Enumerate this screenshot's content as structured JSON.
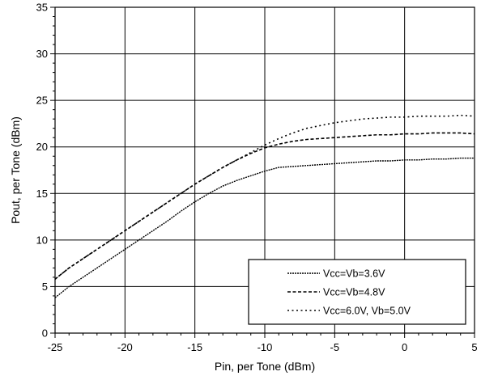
{
  "chart_data": {
    "type": "line",
    "title": "",
    "xlabel": "Pin, per Tone (dBm)",
    "ylabel": "Pout, per Tone (dBm)",
    "xlim": [
      -25,
      5
    ],
    "ylim": [
      0,
      35
    ],
    "xticks": [
      -25,
      -20,
      -15,
      -10,
      -5,
      0,
      5
    ],
    "xtick_labels": [
      "-25",
      "-20",
      "-15",
      "-10",
      "-5",
      "0",
      "5"
    ],
    "yticks": [
      0,
      5,
      10,
      15,
      20,
      25,
      30,
      35
    ],
    "ytick_labels": [
      "0",
      "5",
      "10",
      "15",
      "20",
      "25",
      "30",
      "35"
    ],
    "grid": true,
    "legend_position": "bottom-right",
    "series": [
      {
        "name": "Vcc=Vb=3.6V",
        "style": "solid-dense",
        "x": [
          -25,
          -24,
          -23,
          -22,
          -21,
          -20,
          -19,
          -18,
          -17,
          -16,
          -15,
          -14,
          -13,
          -12,
          -11,
          -10,
          -9,
          -8,
          -7,
          -6,
          -5,
          -4,
          -3,
          -2,
          -1,
          0,
          1,
          2,
          3,
          4,
          5
        ],
        "y": [
          3.8,
          5.0,
          6.0,
          7.0,
          8.0,
          9.0,
          10.0,
          11.0,
          12.0,
          13.1,
          14.1,
          15.0,
          15.8,
          16.4,
          16.9,
          17.4,
          17.8,
          17.9,
          18.0,
          18.1,
          18.2,
          18.3,
          18.4,
          18.5,
          18.5,
          18.6,
          18.6,
          18.7,
          18.7,
          18.8,
          18.8
        ]
      },
      {
        "name": "Vcc=Vb=4.8V",
        "style": "dash",
        "x": [
          -25,
          -24,
          -23,
          -22,
          -21,
          -20,
          -19,
          -18,
          -17,
          -16,
          -15,
          -14,
          -13,
          -12,
          -11,
          -10,
          -9,
          -8,
          -7,
          -6,
          -5,
          -4,
          -3,
          -2,
          -1,
          0,
          1,
          2,
          3,
          4,
          5
        ],
        "y": [
          5.8,
          7.0,
          8.0,
          9.0,
          10.0,
          11.0,
          12.0,
          13.0,
          14.0,
          15.0,
          16.0,
          16.9,
          17.8,
          18.6,
          19.3,
          19.9,
          20.3,
          20.6,
          20.8,
          20.9,
          21.0,
          21.1,
          21.2,
          21.3,
          21.3,
          21.4,
          21.4,
          21.5,
          21.5,
          21.5,
          21.4
        ]
      },
      {
        "name": "Vcc=6.0V, Vb=5.0V",
        "style": "dot",
        "x": [
          -25,
          -24,
          -23,
          -22,
          -21,
          -20,
          -19,
          -18,
          -17,
          -16,
          -15,
          -14,
          -13,
          -12,
          -11,
          -10,
          -9,
          -8,
          -7,
          -6,
          -5,
          -4,
          -3,
          -2,
          -1,
          0,
          1,
          2,
          3,
          4,
          5
        ],
        "y": [
          5.8,
          7.0,
          8.0,
          9.0,
          10.0,
          11.0,
          12.0,
          13.0,
          14.0,
          15.0,
          16.0,
          16.9,
          17.8,
          18.6,
          19.4,
          20.2,
          20.9,
          21.5,
          22.0,
          22.3,
          22.6,
          22.8,
          23.0,
          23.1,
          23.2,
          23.2,
          23.3,
          23.3,
          23.3,
          23.4,
          23.3
        ]
      }
    ]
  }
}
